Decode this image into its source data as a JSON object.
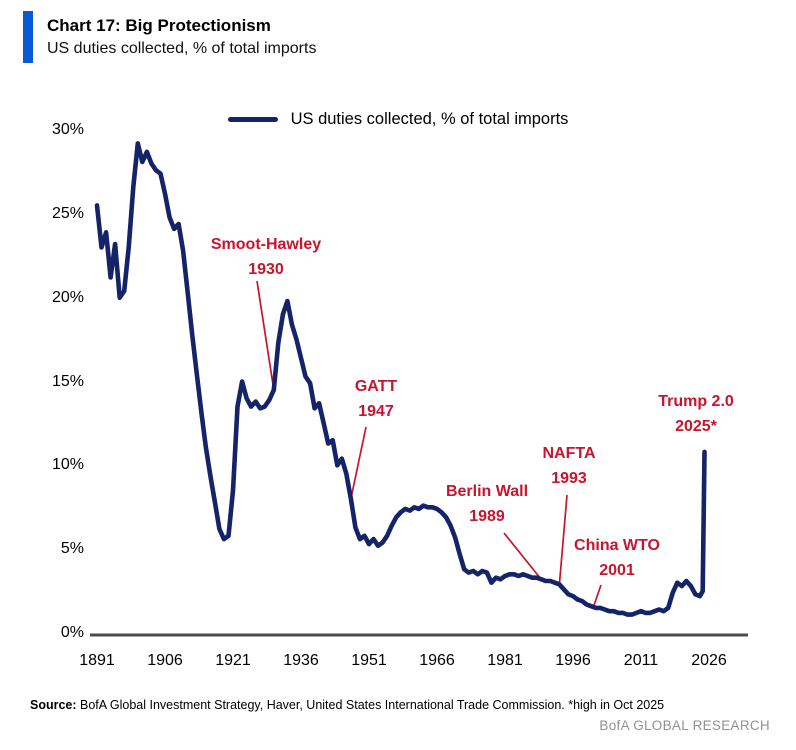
{
  "header": {
    "title": "Chart 17: Big Protectionism",
    "subtitle": "US duties collected, % of total imports",
    "accent_color": "#0b5ad5"
  },
  "legend": {
    "label": "US duties collected, % of total imports"
  },
  "chart_data": {
    "type": "line",
    "title": "Chart 17: Big Protectionism",
    "subtitle": "US duties collected, % of total imports",
    "xlim": [
      1891,
      2026
    ],
    "ylim": [
      0,
      30
    ],
    "grid": false,
    "legend_position": "top-center",
    "x_tick_labels": [
      "1891",
      "1906",
      "1921",
      "1936",
      "1951",
      "1966",
      "1981",
      "1996",
      "2011",
      "2026"
    ],
    "x_tick_values": [
      1891,
      1906,
      1921,
      1936,
      1951,
      1966,
      1981,
      1996,
      2011,
      2026
    ],
    "y_tick_labels": [
      "30%",
      "25%",
      "20%",
      "15%",
      "10%",
      "5%",
      "0%"
    ],
    "y_tick_values": [
      30,
      25,
      20,
      15,
      10,
      5,
      0
    ],
    "axis_color": "#4d4d4d",
    "annotation_color": "#c9142e",
    "series": [
      {
        "name": "US duties collected, % of total imports",
        "color": "#152368",
        "points": [
          [
            1891,
            25.5
          ],
          [
            1892,
            23.0
          ],
          [
            1893,
            23.9
          ],
          [
            1894,
            21.2
          ],
          [
            1895,
            23.2
          ],
          [
            1896,
            20.0
          ],
          [
            1897,
            20.4
          ],
          [
            1898,
            23.0
          ],
          [
            1899,
            26.6
          ],
          [
            1900,
            29.2
          ],
          [
            1901,
            28.1
          ],
          [
            1902,
            28.7
          ],
          [
            1903,
            28.0
          ],
          [
            1904,
            27.6
          ],
          [
            1905,
            27.4
          ],
          [
            1906,
            26.2
          ],
          [
            1907,
            24.8
          ],
          [
            1908,
            24.1
          ],
          [
            1909,
            24.4
          ],
          [
            1910,
            22.8
          ],
          [
            1911,
            20.3
          ],
          [
            1912,
            17.8
          ],
          [
            1913,
            15.5
          ],
          [
            1914,
            13.2
          ],
          [
            1915,
            11.1
          ],
          [
            1916,
            9.4
          ],
          [
            1917,
            7.8
          ],
          [
            1918,
            6.2
          ],
          [
            1919,
            5.6
          ],
          [
            1920,
            5.8
          ],
          [
            1921,
            8.5
          ],
          [
            1922,
            13.5
          ],
          [
            1923,
            15.0
          ],
          [
            1924,
            14.0
          ],
          [
            1925,
            13.5
          ],
          [
            1926,
            13.8
          ],
          [
            1927,
            13.4
          ],
          [
            1928,
            13.5
          ],
          [
            1929,
            13.9
          ],
          [
            1930,
            14.5
          ],
          [
            1931,
            17.3
          ],
          [
            1932,
            19.0
          ],
          [
            1933,
            19.8
          ],
          [
            1934,
            18.4
          ],
          [
            1935,
            17.5
          ],
          [
            1936,
            16.4
          ],
          [
            1937,
            15.3
          ],
          [
            1938,
            14.9
          ],
          [
            1939,
            13.4
          ],
          [
            1940,
            13.7
          ],
          [
            1941,
            12.5
          ],
          [
            1942,
            11.3
          ],
          [
            1943,
            11.5
          ],
          [
            1944,
            10.0
          ],
          [
            1945,
            10.4
          ],
          [
            1946,
            9.5
          ],
          [
            1947,
            8.0
          ],
          [
            1948,
            6.3
          ],
          [
            1949,
            5.6
          ],
          [
            1950,
            5.8
          ],
          [
            1951,
            5.3
          ],
          [
            1952,
            5.6
          ],
          [
            1953,
            5.2
          ],
          [
            1954,
            5.4
          ],
          [
            1955,
            5.8
          ],
          [
            1956,
            6.4
          ],
          [
            1957,
            6.9
          ],
          [
            1958,
            7.2
          ],
          [
            1959,
            7.4
          ],
          [
            1960,
            7.3
          ],
          [
            1961,
            7.5
          ],
          [
            1962,
            7.4
          ],
          [
            1963,
            7.6
          ],
          [
            1964,
            7.5
          ],
          [
            1965,
            7.5
          ],
          [
            1966,
            7.4
          ],
          [
            1967,
            7.2
          ],
          [
            1968,
            6.9
          ],
          [
            1969,
            6.4
          ],
          [
            1970,
            5.7
          ],
          [
            1971,
            4.7
          ],
          [
            1972,
            3.8
          ],
          [
            1973,
            3.6
          ],
          [
            1974,
            3.7
          ],
          [
            1975,
            3.5
          ],
          [
            1976,
            3.7
          ],
          [
            1977,
            3.6
          ],
          [
            1978,
            3.0
          ],
          [
            1979,
            3.3
          ],
          [
            1980,
            3.2
          ],
          [
            1981,
            3.4
          ],
          [
            1982,
            3.5
          ],
          [
            1983,
            3.5
          ],
          [
            1984,
            3.4
          ],
          [
            1985,
            3.5
          ],
          [
            1986,
            3.4
          ],
          [
            1987,
            3.3
          ],
          [
            1988,
            3.3
          ],
          [
            1989,
            3.2
          ],
          [
            1990,
            3.1
          ],
          [
            1991,
            3.1
          ],
          [
            1992,
            3.0
          ],
          [
            1993,
            2.9
          ],
          [
            1994,
            2.6
          ],
          [
            1995,
            2.3
          ],
          [
            1996,
            2.2
          ],
          [
            1997,
            2.0
          ],
          [
            1998,
            1.9
          ],
          [
            1999,
            1.7
          ],
          [
            2000,
            1.6
          ],
          [
            2001,
            1.5
          ],
          [
            2002,
            1.5
          ],
          [
            2003,
            1.4
          ],
          [
            2004,
            1.3
          ],
          [
            2005,
            1.3
          ],
          [
            2006,
            1.2
          ],
          [
            2007,
            1.2
          ],
          [
            2008,
            1.1
          ],
          [
            2009,
            1.1
          ],
          [
            2010,
            1.2
          ],
          [
            2011,
            1.3
          ],
          [
            2012,
            1.2
          ],
          [
            2013,
            1.2
          ],
          [
            2014,
            1.3
          ],
          [
            2015,
            1.4
          ],
          [
            2016,
            1.3
          ],
          [
            2017,
            1.5
          ],
          [
            2018,
            2.4
          ],
          [
            2019,
            3.0
          ],
          [
            2020,
            2.8
          ],
          [
            2021,
            3.1
          ],
          [
            2022,
            2.8
          ],
          [
            2023,
            2.3
          ],
          [
            2024,
            2.2
          ],
          [
            2024.6,
            2.5
          ],
          [
            2025,
            10.8
          ]
        ]
      }
    ],
    "annotations": [
      {
        "id": "smoot-hawley",
        "line1": "Smoot-Hawley",
        "line2": "1930",
        "anchor_year": 1930,
        "anchor_value": 14.5,
        "has_leader": true
      },
      {
        "id": "gatt",
        "line1": "GATT",
        "line2": "1947",
        "anchor_year": 1947,
        "anchor_value": 8.0,
        "has_leader": true
      },
      {
        "id": "berlin-wall",
        "line1": "Berlin Wall",
        "line2": "1989",
        "anchor_year": 1989,
        "anchor_value": 3.2,
        "has_leader": true
      },
      {
        "id": "nafta",
        "line1": "NAFTA",
        "line2": "1993",
        "anchor_year": 1993,
        "anchor_value": 2.9,
        "has_leader": true
      },
      {
        "id": "china-wto",
        "line1": "China WTO",
        "line2": "2001",
        "anchor_year": 2000.5,
        "anchor_value": 1.55,
        "has_leader": true
      },
      {
        "id": "trump-2-0",
        "line1": "Trump 2.0",
        "line2": "2025*",
        "anchor_year": 2025,
        "anchor_value": 10.8,
        "has_leader": false
      }
    ]
  },
  "footer": {
    "source_label": "Source:",
    "source_text": " BofA Global Investment Strategy, Haver, United States International Trade Commission. *high in Oct 2025",
    "brand": "BofA GLOBAL RESEARCH"
  }
}
